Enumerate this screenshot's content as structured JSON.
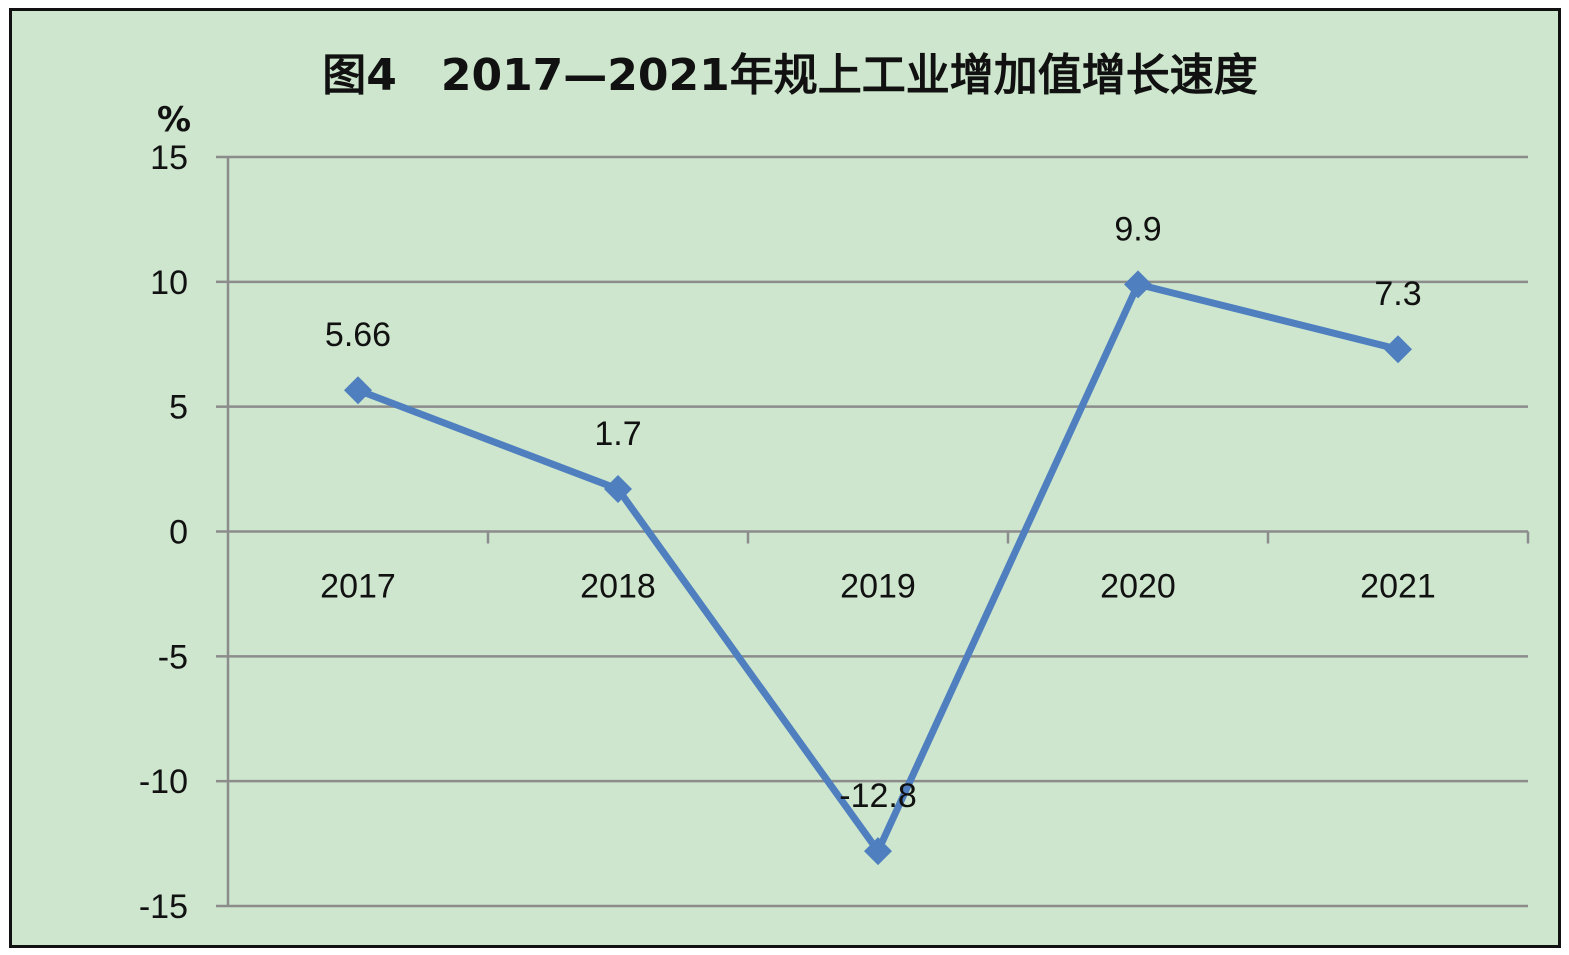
{
  "chart_data": {
    "type": "line",
    "title": "图4　2017—2021年规上工业增加值增长速度",
    "ylabel": "%",
    "xlabel": "",
    "categories": [
      "2017",
      "2018",
      "2019",
      "2020",
      "2021"
    ],
    "series": [
      {
        "values": [
          5.66,
          1.7,
          -12.8,
          9.9,
          7.3
        ],
        "labels": [
          "5.66",
          "1.7",
          "-12.8",
          "9.9",
          "7.3"
        ]
      }
    ],
    "ylim": [
      -15,
      15
    ],
    "yticks": [
      15,
      10,
      5,
      0,
      -5,
      -10,
      -15
    ],
    "ytick_labels": [
      "15",
      "10",
      "5",
      "0",
      "-5",
      "-10",
      "-15"
    ],
    "grid": true,
    "marker": "diamond",
    "colors": {
      "line": "#4f7fbf",
      "background": "#cde6cd",
      "grid": "#8c8c8c",
      "axis": "#8c8c8c",
      "frame": "#111111"
    }
  }
}
